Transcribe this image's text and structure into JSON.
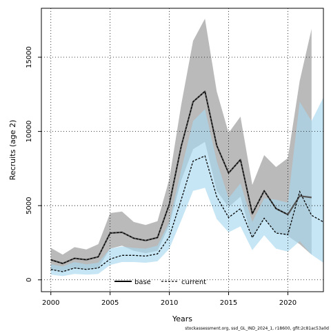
{
  "chart_data": {
    "type": "line",
    "xlabel": "Years",
    "ylabel": "Recruits (age 2)",
    "xlim": [
      1999.2,
      2023
    ],
    "ylim": [
      -800,
      18300
    ],
    "x_ticks": [
      2000,
      2005,
      2010,
      2015,
      2020
    ],
    "y_ticks": [
      0,
      5000,
      10000,
      15000
    ],
    "grid": true,
    "grid_style": "dotted",
    "legend_position": "bottom-center",
    "footer": "stockassessment.org, ssd_GL_IND_2024_1, r18600, gfit:2c81ac53a0d",
    "x": [
      2000,
      2001,
      2002,
      2003,
      2004,
      2005,
      2006,
      2007,
      2008,
      2009,
      2010,
      2011,
      2012,
      2013,
      2014,
      2015,
      2016,
      2017,
      2018,
      2019,
      2020,
      2021,
      2022,
      2023
    ],
    "series": [
      {
        "name": "base",
        "color": "#000000",
        "band_color": "#8c8c8c",
        "line_style": "solid",
        "values": [
          1350,
          1100,
          1450,
          1350,
          1550,
          3150,
          3200,
          2800,
          2650,
          2850,
          5100,
          9000,
          12000,
          12700,
          9050,
          7200,
          8100,
          4450,
          6000,
          4800,
          4400,
          5650,
          5550,
          null
        ],
        "lower": [
          700,
          550,
          750,
          700,
          800,
          2100,
          2300,
          1950,
          1800,
          1950,
          3700,
          6700,
          8800,
          9300,
          6000,
          4900,
          5600,
          2750,
          4100,
          3200,
          2950,
          2400,
          1700,
          null
        ],
        "upper": [
          2150,
          1700,
          2200,
          2050,
          2400,
          4500,
          4600,
          3900,
          3700,
          3950,
          6800,
          11800,
          16100,
          17600,
          12700,
          9900,
          11000,
          6400,
          8400,
          7600,
          8200,
          13400,
          16900,
          null
        ]
      },
      {
        "name": "current",
        "color": "#000000",
        "band_color": "#a8d8f0",
        "line_style": "dashed",
        "values": [
          700,
          550,
          800,
          700,
          800,
          1400,
          1650,
          1650,
          1600,
          1750,
          2900,
          5400,
          8000,
          8350,
          5600,
          4200,
          4800,
          2850,
          4150,
          3150,
          3050,
          5950,
          4350,
          3900
        ],
        "lower": [
          350,
          250,
          400,
          350,
          400,
          1000,
          1200,
          1200,
          1150,
          1250,
          2100,
          4000,
          6000,
          6200,
          4100,
          3200,
          3600,
          2000,
          3000,
          2100,
          1900,
          2600,
          1700,
          1150
        ],
        "upper": [
          1050,
          900,
          1200,
          1050,
          1150,
          2100,
          2250,
          2150,
          2100,
          2300,
          3900,
          7400,
          10700,
          11500,
          8000,
          5500,
          6500,
          3900,
          5500,
          5400,
          5200,
          12000,
          10700,
          12300
        ]
      }
    ]
  }
}
